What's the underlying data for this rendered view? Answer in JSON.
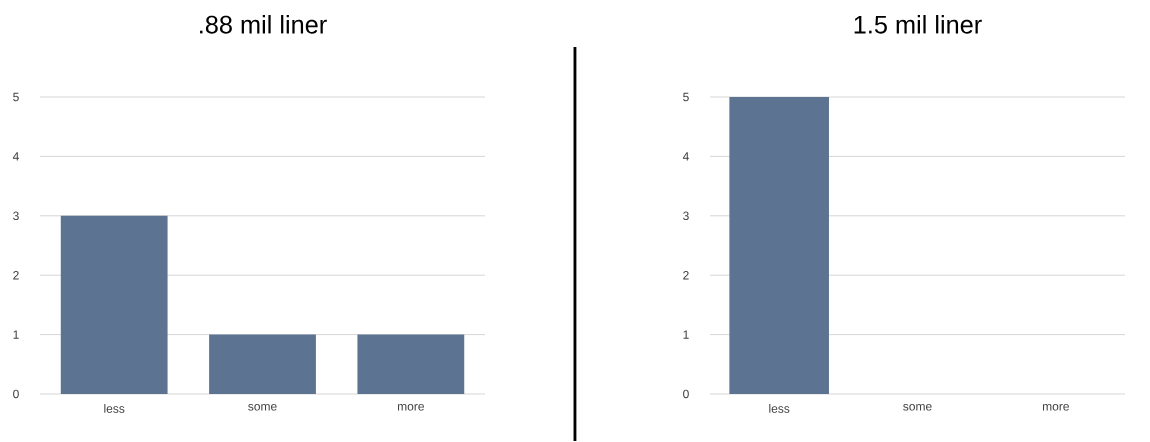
{
  "chart_data": [
    {
      "type": "bar",
      "title": ".88 mil liner",
      "categories": [
        "less",
        "some",
        "more"
      ],
      "values": [
        3,
        1,
        1
      ],
      "color": "#5c7391",
      "ylim": [
        0,
        5
      ],
      "yticks": [
        0,
        1,
        2,
        3,
        4,
        5
      ],
      "grid": "y"
    },
    {
      "type": "bar",
      "title": "1.5 mil liner",
      "categories": [
        "less",
        "some",
        "more"
      ],
      "values": [
        5,
        0,
        0
      ],
      "color": "#5c7391",
      "ylim": [
        0,
        5
      ],
      "yticks": [
        0,
        1,
        2,
        3,
        4,
        5
      ],
      "grid": "y"
    }
  ]
}
